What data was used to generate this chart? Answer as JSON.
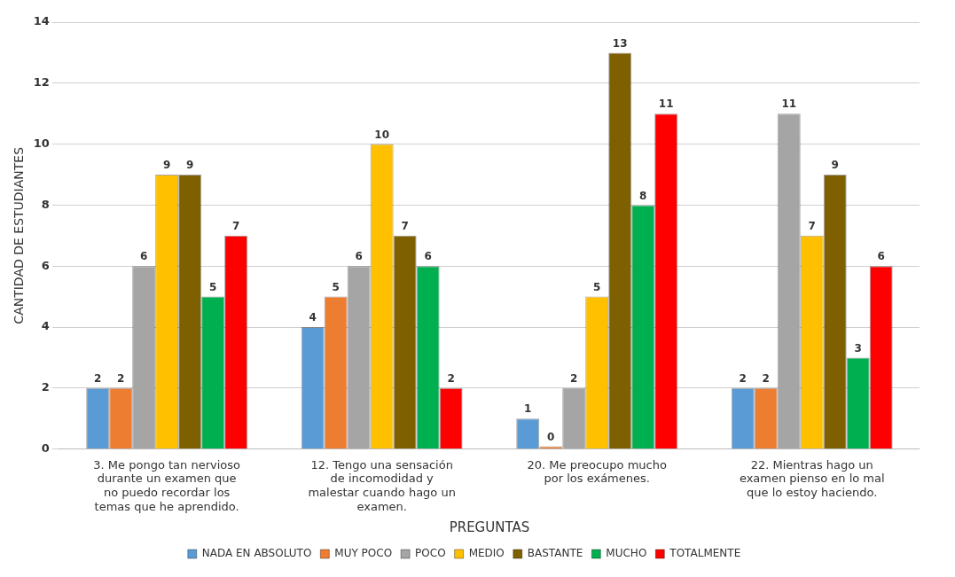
{
  "chart_data": {
    "type": "bar",
    "xlabel": "PREGUNTAS",
    "ylabel": "CANTIDAD DE ESTUDIANTES",
    "categories": [
      "3. Me pongo tan nervioso durante un examen que no puedo recordar los temas que he aprendido.",
      "12. Tengo una sensación de incomodidad y malestar cuando hago un examen.",
      "20. Me preocupo mucho por los exámenes.",
      "22. Mientras hago un examen pienso en lo mal que lo estoy haciendo."
    ],
    "series": [
      {
        "name": "NADA EN ABSOLUTO",
        "color": "#5b9bd5",
        "values": [
          2,
          4,
          1,
          2
        ]
      },
      {
        "name": "MUY POCO",
        "color": "#ed7d31",
        "values": [
          2,
          5,
          0,
          2
        ]
      },
      {
        "name": "POCO",
        "color": "#a5a5a5",
        "values": [
          6,
          6,
          2,
          11
        ]
      },
      {
        "name": "MEDIO",
        "color": "#ffc000",
        "values": [
          9,
          10,
          5,
          7
        ]
      },
      {
        "name": "BASTANTE",
        "color": "#7f6000",
        "values": [
          9,
          7,
          13,
          9
        ]
      },
      {
        "name": "MUCHO",
        "color": "#00b050",
        "values": [
          5,
          6,
          8,
          3
        ]
      },
      {
        "name": "TOTALMENTE",
        "color": "#ff0000",
        "values": [
          7,
          2,
          11,
          6
        ]
      }
    ],
    "ylim": [
      0,
      14
    ],
    "yticks": [
      0,
      2,
      4,
      6,
      8,
      10,
      12,
      14
    ],
    "grid": "y",
    "legend": "bottom",
    "data_labels": true
  }
}
